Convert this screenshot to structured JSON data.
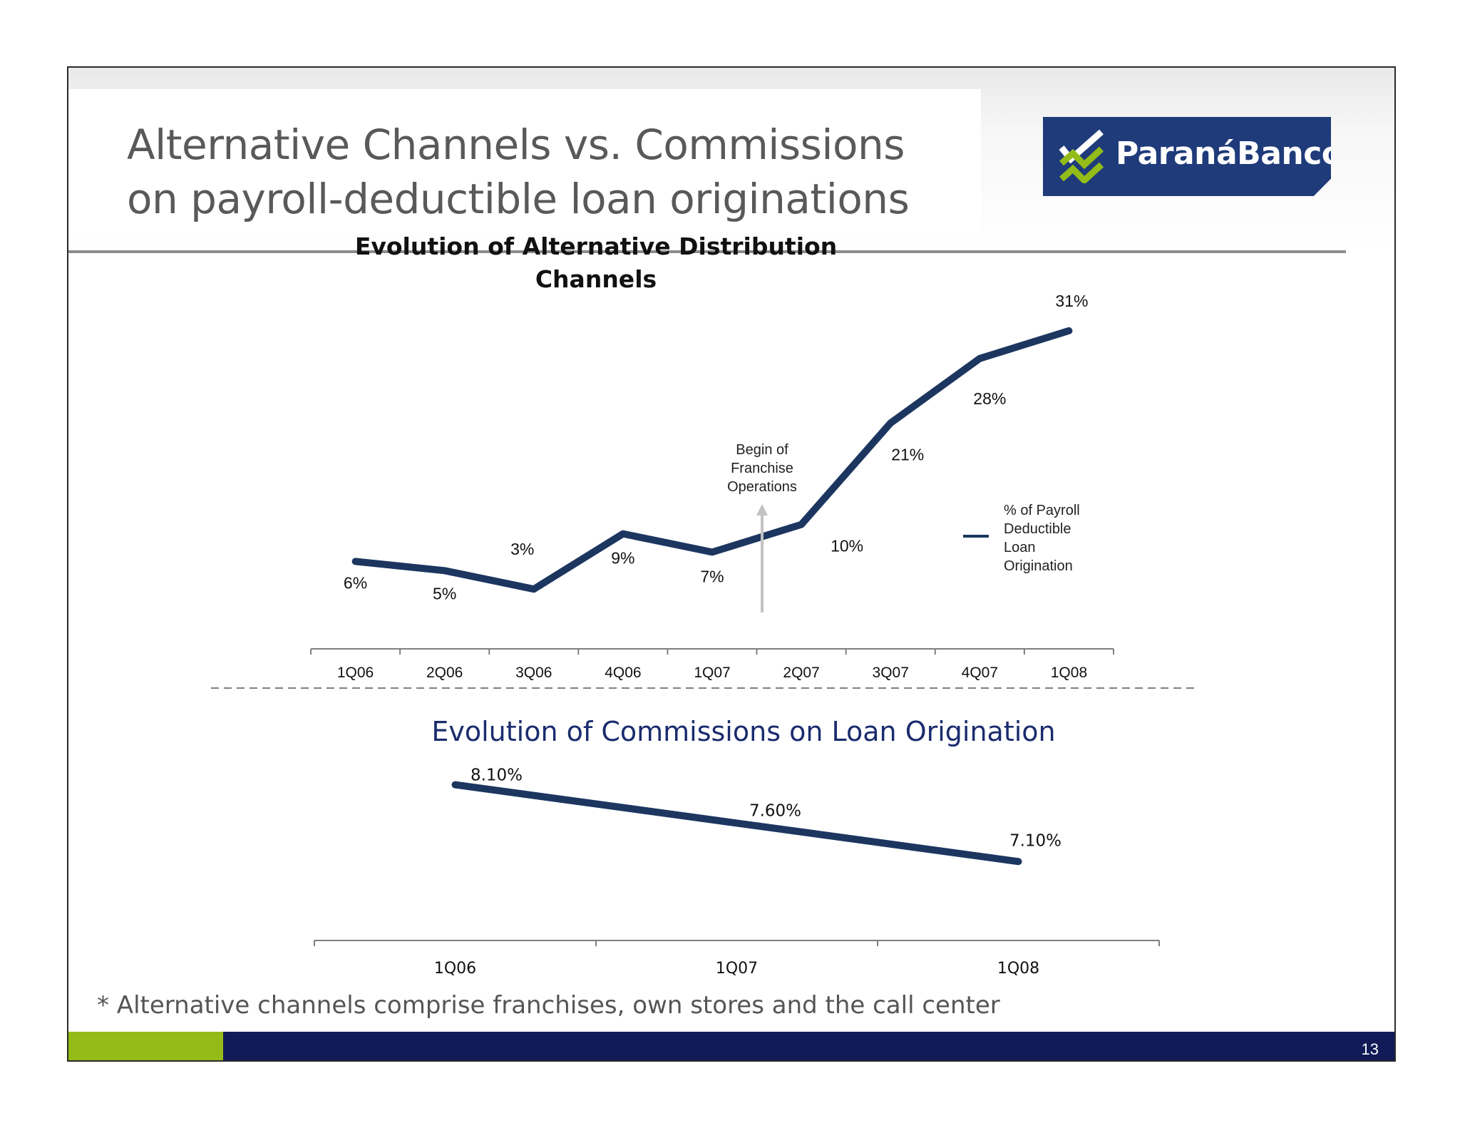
{
  "slide": {
    "title_line1": "Alternative Channels vs. Commissions",
    "title_line2": "on payroll-deductible loan originations",
    "logo_text": "ParanáBanco",
    "footnote": "* Alternative channels comprise franchises, own stores and the call center",
    "page_number": "13"
  },
  "colors": {
    "series_line": "#1c3660",
    "footer_green": "#93bc18",
    "footer_navy": "#121b58",
    "logo_blue": "#1f3b7a",
    "title_gray": "#595959",
    "chart2_title": "#1b2c6e"
  },
  "chart_data": [
    {
      "type": "line",
      "title_line1": "Evolution of Alternative Distribution",
      "title_line2": "Channels",
      "categories": [
        "1Q06",
        "2Q06",
        "3Q06",
        "4Q06",
        "1Q07",
        "2Q07",
        "3Q07",
        "4Q07",
        "1Q08"
      ],
      "series": [
        {
          "name": "% of Payroll Deductible Loan Origination",
          "name_lines": [
            "% of Payroll",
            "Deductible",
            "Loan",
            "Origination"
          ],
          "values": [
            6,
            5,
            3,
            9,
            7,
            10,
            21,
            28,
            31
          ]
        }
      ],
      "data_labels": [
        "6%",
        "5%",
        "3%",
        "9%",
        "7%",
        "10%",
        "21%",
        "28%",
        "31%"
      ],
      "unit": "%",
      "ylim": [
        0,
        32
      ],
      "grid": false,
      "legend": "right",
      "annotation": {
        "lines": [
          "Begin of",
          "Franchise",
          "Operations"
        ],
        "position": "between 1Q07 and 2Q07"
      }
    },
    {
      "type": "line",
      "title": "Evolution of Commissions on Loan Origination",
      "categories": [
        "1Q06",
        "1Q07",
        "1Q08"
      ],
      "series": [
        {
          "values": [
            8.1,
            7.6,
            7.1
          ]
        }
      ],
      "data_labels": [
        "8.10%",
        "7.60%",
        "7.10%"
      ],
      "unit": "%",
      "ylim": [
        6.5,
        8.3
      ],
      "grid": false
    }
  ]
}
